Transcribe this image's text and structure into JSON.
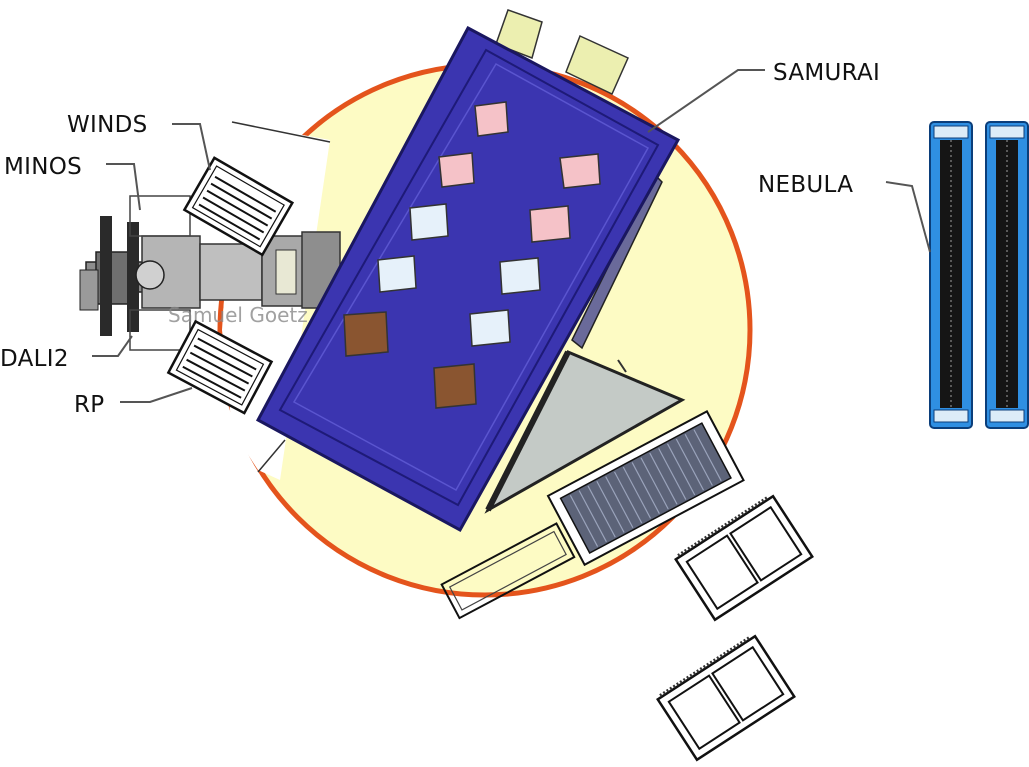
{
  "labels": {
    "samurai": "SAMURAI",
    "nebula": "NEBULA",
    "winds": "WINDS",
    "minos": "MINOS",
    "dali2": "DALI2",
    "rp": "RP"
  },
  "faint_text": "Samuel Goetz",
  "colors": {
    "floor": "#fdfbc4",
    "floor_rim": "#e4541c",
    "magnet": "#3b35b0",
    "magnet_dark": "#1e1a78",
    "nebula_blue": "#2f8fe2",
    "nebula_core": "#151515",
    "pink": "#f5c2c8",
    "light_blue": "#e6f1fa",
    "brown": "#8a5530",
    "hodoscope_gray": "#c4cac6"
  }
}
